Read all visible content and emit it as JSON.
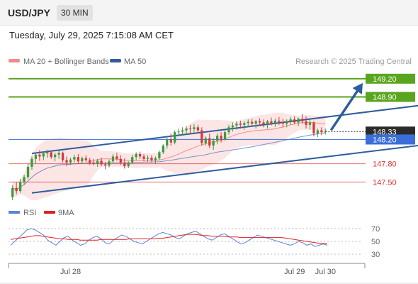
{
  "header": {
    "symbol": "USD/JPY",
    "timeframe": "30 MIN",
    "datetime": "Tuesday, July 29, 2025 7:15:08 AM CET"
  },
  "legend": {
    "ma20_label": "MA 20 + Bollinger Bands",
    "ma50_label": "MA 50",
    "source": "Research © 2025 Trading Central",
    "ma20_color": "#f08c8c",
    "ma50_color": "#2f5d9e"
  },
  "rsi_legend": {
    "rsi_label": "RSI",
    "ma_label": "9MA",
    "rsi_color": "#5b84d8",
    "ma_color": "#e02020"
  },
  "chart_data": [
    {
      "type": "candlestick",
      "title": "USD/JPY",
      "ylim": [
        147.2,
        149.35
      ],
      "x_tick_labels": [
        "Jul 28",
        "Jul 29",
        "Jul 30"
      ],
      "last_price": "148.33",
      "levels": [
        {
          "value": 149.2,
          "label": "149.20",
          "kind": "target",
          "color": "#5aa51e"
        },
        {
          "value": 148.9,
          "label": "148.90",
          "kind": "resistance",
          "color": "#5aa51e"
        },
        {
          "value": 148.2,
          "label": "148.20",
          "kind": "pivot",
          "color": "#3a6fd8"
        },
        {
          "value": 147.8,
          "label": "147.80",
          "kind": "support",
          "color": "#e03030"
        },
        {
          "value": 147.5,
          "label": "147.50",
          "kind": "support",
          "color": "#e03030"
        }
      ],
      "ohlc": [
        [
          147.25,
          147.45,
          147.2,
          147.4
        ],
        [
          147.4,
          147.5,
          147.3,
          147.35
        ],
        [
          147.35,
          147.55,
          147.32,
          147.5
        ],
        [
          147.5,
          147.62,
          147.45,
          147.58
        ],
        [
          147.58,
          147.8,
          147.55,
          147.75
        ],
        [
          147.75,
          147.92,
          147.7,
          147.88
        ],
        [
          147.88,
          147.98,
          147.8,
          147.95
        ],
        [
          147.95,
          148.02,
          147.85,
          147.92
        ],
        [
          147.92,
          148.0,
          147.86,
          147.97
        ],
        [
          147.97,
          148.03,
          147.9,
          147.99
        ],
        [
          147.99,
          148.02,
          147.88,
          147.91
        ],
        [
          147.91,
          147.98,
          147.84,
          147.95
        ],
        [
          147.95,
          148.02,
          147.88,
          147.98
        ],
        [
          147.98,
          148.0,
          147.82,
          147.86
        ],
        [
          147.86,
          147.92,
          147.76,
          147.82
        ],
        [
          147.82,
          147.9,
          147.78,
          147.87
        ],
        [
          147.87,
          147.95,
          147.82,
          147.91
        ],
        [
          147.91,
          147.96,
          147.8,
          147.84
        ],
        [
          147.84,
          147.92,
          147.8,
          147.89
        ],
        [
          147.89,
          147.94,
          147.83,
          147.86
        ],
        [
          147.86,
          147.9,
          147.78,
          147.82
        ],
        [
          147.82,
          147.88,
          147.77,
          147.8
        ],
        [
          147.8,
          147.88,
          147.75,
          147.85
        ],
        [
          147.85,
          147.9,
          147.76,
          147.79
        ],
        [
          147.79,
          147.83,
          147.71,
          147.77
        ],
        [
          147.77,
          147.87,
          147.74,
          147.84
        ],
        [
          147.84,
          147.96,
          147.82,
          147.92
        ],
        [
          147.92,
          147.98,
          147.85,
          147.88
        ],
        [
          147.88,
          147.94,
          147.78,
          147.82
        ],
        [
          147.82,
          147.89,
          147.72,
          147.76
        ],
        [
          147.76,
          147.84,
          147.73,
          147.82
        ],
        [
          147.82,
          147.95,
          147.8,
          147.91
        ],
        [
          147.91,
          147.99,
          147.86,
          147.96
        ],
        [
          147.96,
          148.0,
          147.88,
          147.92
        ],
        [
          147.92,
          147.96,
          147.84,
          147.88
        ],
        [
          147.88,
          147.94,
          147.83,
          147.9
        ],
        [
          147.9,
          147.94,
          147.82,
          147.86
        ],
        [
          147.86,
          147.92,
          147.8,
          147.89
        ],
        [
          147.89,
          148.02,
          147.86,
          147.99
        ],
        [
          147.99,
          148.12,
          147.96,
          148.1
        ],
        [
          148.1,
          148.25,
          148.05,
          148.2
        ],
        [
          148.2,
          148.3,
          148.1,
          148.15
        ],
        [
          148.15,
          148.35,
          148.12,
          148.32
        ],
        [
          148.32,
          148.38,
          148.25,
          148.33
        ],
        [
          148.33,
          148.4,
          148.26,
          148.35
        ],
        [
          148.35,
          148.42,
          148.28,
          148.38
        ],
        [
          148.38,
          148.44,
          148.3,
          148.37
        ],
        [
          148.37,
          148.45,
          148.31,
          148.4
        ],
        [
          148.4,
          148.44,
          148.3,
          148.35
        ],
        [
          148.35,
          148.4,
          148.1,
          148.14
        ],
        [
          148.14,
          148.25,
          148.1,
          148.22
        ],
        [
          148.22,
          148.3,
          148.06,
          148.1
        ],
        [
          148.1,
          148.22,
          148.03,
          148.18
        ],
        [
          148.18,
          148.3,
          148.12,
          148.26
        ],
        [
          148.26,
          148.32,
          148.15,
          148.2
        ],
        [
          148.2,
          148.36,
          148.18,
          148.32
        ],
        [
          148.32,
          148.44,
          148.28,
          148.4
        ],
        [
          148.4,
          148.48,
          148.33,
          148.43
        ],
        [
          148.43,
          148.5,
          148.36,
          148.46
        ],
        [
          148.46,
          148.51,
          148.38,
          148.44
        ],
        [
          148.44,
          148.5,
          148.36,
          148.47
        ],
        [
          148.47,
          148.53,
          148.4,
          148.49
        ],
        [
          148.49,
          148.54,
          148.42,
          148.46
        ],
        [
          148.46,
          148.52,
          148.38,
          148.5
        ],
        [
          148.5,
          148.55,
          148.42,
          148.48
        ],
        [
          148.48,
          148.53,
          148.4,
          148.45
        ],
        [
          148.45,
          148.52,
          148.38,
          148.5
        ],
        [
          148.5,
          148.56,
          148.43,
          148.47
        ],
        [
          148.47,
          148.54,
          148.41,
          148.51
        ],
        [
          148.51,
          148.57,
          148.44,
          148.49
        ],
        [
          148.49,
          148.54,
          148.4,
          148.46
        ],
        [
          148.46,
          148.53,
          148.4,
          148.5
        ],
        [
          148.5,
          148.57,
          148.44,
          148.53
        ],
        [
          148.53,
          148.58,
          148.45,
          148.48
        ],
        [
          148.48,
          148.56,
          148.42,
          148.54
        ],
        [
          148.54,
          148.62,
          148.46,
          148.5
        ],
        [
          148.5,
          148.58,
          148.38,
          148.44
        ],
        [
          148.44,
          148.52,
          148.36,
          148.48
        ],
        [
          148.48,
          148.5,
          148.25,
          148.3
        ],
        [
          148.3,
          148.38,
          148.24,
          148.35
        ],
        [
          148.35,
          148.4,
          148.27,
          148.32
        ],
        [
          148.32,
          148.38,
          148.28,
          148.33
        ]
      ],
      "trend_lines": [
        {
          "x": [
            5,
            108
          ],
          "y": [
            147.97,
            148.78
          ]
        },
        {
          "x": [
            5,
            128
          ],
          "y": [
            147.32,
            148.28
          ]
        }
      ]
    },
    {
      "type": "line",
      "title": "RSI",
      "ylim": [
        20,
        80
      ],
      "y_ticks": [
        "70",
        "50",
        "30"
      ],
      "series": [
        {
          "name": "RSI",
          "values": [
            44,
            50,
            56,
            62,
            68,
            70,
            68,
            64,
            60,
            52,
            48,
            44,
            50,
            56,
            58,
            52,
            48,
            44,
            46,
            52,
            56,
            58,
            54,
            48,
            46,
            52,
            56,
            60,
            58,
            54,
            50,
            48,
            46,
            50,
            54,
            58,
            62,
            64,
            62,
            60,
            56,
            54,
            58,
            62,
            64,
            66,
            62,
            58,
            54,
            52,
            56,
            60,
            62,
            58,
            54,
            50,
            46,
            48,
            52,
            56,
            60,
            58,
            56,
            54,
            52,
            50,
            48,
            46,
            44,
            46,
            50,
            48,
            44,
            46,
            42,
            44,
            46,
            44
          ]
        },
        {
          "name": "9MA",
          "values": [
            53,
            54,
            55,
            56,
            57,
            58,
            59,
            59,
            58,
            57,
            56,
            55,
            54,
            54,
            53,
            53,
            53,
            52,
            52,
            52,
            52,
            52,
            53,
            53,
            53,
            53,
            53,
            53,
            53,
            54,
            54,
            54,
            54,
            54,
            54,
            54,
            55,
            55,
            56,
            57,
            58,
            59,
            60,
            61,
            61,
            61,
            60,
            59,
            59,
            58,
            58,
            58,
            58,
            57,
            57,
            57,
            56,
            56,
            56,
            56,
            56,
            56,
            56,
            56,
            56,
            56,
            56,
            55,
            54,
            53,
            52,
            51,
            50,
            49,
            48,
            47,
            47,
            46
          ]
        }
      ]
    }
  ]
}
